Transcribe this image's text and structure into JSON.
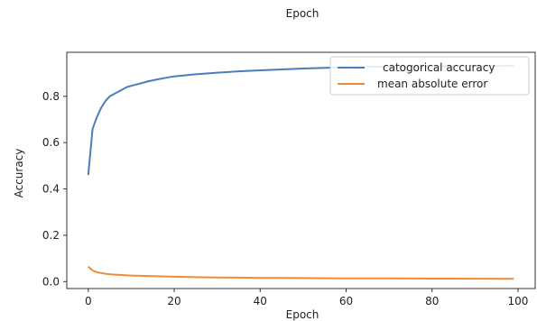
{
  "chart_data": {
    "type": "line",
    "title": "Epoch",
    "xlabel": "Epoch",
    "ylabel": "Accuracy",
    "xlim": [
      -5,
      104
    ],
    "ylim": [
      -0.03,
      0.99
    ],
    "xticks": [
      0,
      20,
      40,
      60,
      80,
      100
    ],
    "yticks": [
      0.0,
      0.2,
      0.4,
      0.6,
      0.8
    ],
    "grid": false,
    "legend_position": "top-right",
    "series": [
      {
        "name": "catogorical accuracy",
        "color": "#4a7ebb",
        "x": [
          0,
          1,
          2,
          3,
          4,
          5,
          6,
          7,
          8,
          9,
          10,
          12,
          14,
          16,
          18,
          20,
          25,
          30,
          35,
          40,
          45,
          50,
          55,
          60,
          65,
          70,
          75,
          80,
          85,
          90,
          95,
          99
        ],
        "y": [
          0.46,
          0.66,
          0.71,
          0.75,
          0.78,
          0.8,
          0.81,
          0.82,
          0.83,
          0.84,
          0.845,
          0.855,
          0.865,
          0.873,
          0.88,
          0.886,
          0.895,
          0.902,
          0.908,
          0.912,
          0.916,
          0.92,
          0.923,
          0.925,
          0.927,
          0.928,
          0.929,
          0.93,
          0.93,
          0.931,
          0.931,
          0.932
        ]
      },
      {
        "name": "mean absolute error",
        "color": "#ef8c3a",
        "x": [
          0,
          1,
          2,
          3,
          4,
          5,
          6,
          7,
          8,
          9,
          10,
          12,
          14,
          16,
          18,
          20,
          25,
          30,
          35,
          40,
          45,
          50,
          55,
          60,
          65,
          70,
          75,
          80,
          85,
          90,
          95,
          99
        ],
        "y": [
          0.065,
          0.048,
          0.041,
          0.037,
          0.034,
          0.032,
          0.03,
          0.029,
          0.028,
          0.027,
          0.026,
          0.025,
          0.024,
          0.023,
          0.022,
          0.021,
          0.019,
          0.018,
          0.017,
          0.016,
          0.0155,
          0.015,
          0.0145,
          0.014,
          0.0138,
          0.0135,
          0.0132,
          0.013,
          0.0128,
          0.0126,
          0.0124,
          0.0122
        ]
      }
    ]
  }
}
